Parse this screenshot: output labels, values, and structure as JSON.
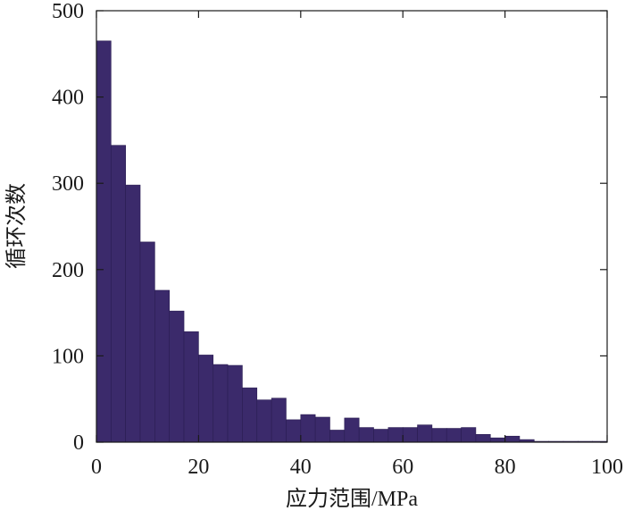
{
  "chart_data": {
    "type": "bar",
    "title": "",
    "xlabel": "应力范围/MPa",
    "ylabel": "循环次数",
    "xlim": [
      0,
      100
    ],
    "ylim": [
      0,
      500
    ],
    "xticks": [
      0,
      20,
      40,
      60,
      80,
      100
    ],
    "yticks": [
      0,
      100,
      200,
      300,
      400,
      500
    ],
    "grid": false,
    "bin_width": 2.857,
    "bin_starts": [
      0,
      2.857,
      5.714,
      8.571,
      11.429,
      14.286,
      17.143,
      20,
      22.857,
      25.714,
      28.571,
      31.429,
      34.286,
      37.143,
      40,
      42.857,
      45.714,
      48.571,
      51.429,
      54.286,
      57.143,
      60,
      62.857,
      65.714,
      68.571,
      71.429,
      74.286,
      77.143,
      80,
      82.857,
      85.714,
      88.571,
      91.429,
      94.286,
      97.143
    ],
    "values": [
      465,
      344,
      298,
      232,
      176,
      152,
      128,
      101,
      90,
      89,
      63,
      49,
      51,
      26,
      32,
      29,
      14,
      28,
      17,
      15,
      17,
      17,
      20,
      16,
      16,
      17,
      9,
      5,
      7,
      3,
      1,
      1,
      1,
      1,
      1
    ],
    "colors": {
      "bar_fill": "#3b2a6b",
      "bar_edge": "#2a1d52",
      "axis": "#1a1a1a"
    }
  }
}
